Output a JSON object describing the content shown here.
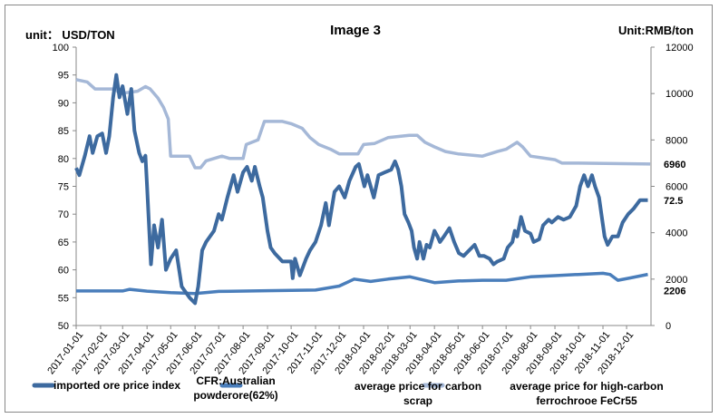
{
  "chart_data": {
    "type": "line",
    "title": "Image 3",
    "left_unit": "unit： USD/TON",
    "right_unit": "Unit:RMB/ton",
    "ylim": [
      50,
      100
    ],
    "y2lim": [
      0,
      12000
    ],
    "yticks": [
      "100",
      "95",
      "90",
      "85",
      "80",
      "75",
      "70",
      "65",
      "60",
      "55",
      "50"
    ],
    "y2ticks": [
      "12000",
      "10000",
      "8000",
      "6000",
      "4000",
      "2000",
      "0"
    ],
    "xticks": [
      "2017-01-01",
      "2017-02-01",
      "2017-03-01",
      "2017-04-01",
      "2017-05-01",
      "2017-06-01",
      "2017-07-01",
      "2017-08-01",
      "2017-09-01",
      "2017-10-01",
      "2017-11-01",
      "2017-12-01",
      "2018-01-01",
      "2018-02-01",
      "2018-03-01",
      "2018-04-01",
      "2018-05-01",
      "2018-06-01",
      "2018-07-01",
      "2018-08-01",
      "2018-09-01",
      "2018-10-01",
      "2018-11-01",
      "2018-12-01"
    ],
    "annotations": [
      "6960",
      "72.5",
      "2206"
    ],
    "legend": {
      "position": "bottom",
      "note": "CFR:Australian powderore(62%)"
    },
    "series": [
      {
        "name": "imported ore price  index",
        "axis": "left",
        "color": "#3d6a9f",
        "points": [
          [
            "2017-01-01",
            78.3
          ],
          [
            "2017-01-05",
            77
          ],
          [
            "2017-01-12",
            80.5
          ],
          [
            "2017-01-18",
            84
          ],
          [
            "2017-01-22",
            81
          ],
          [
            "2017-01-28",
            84
          ],
          [
            "2017-02-03",
            84.5
          ],
          [
            "2017-02-08",
            81
          ],
          [
            "2017-02-12",
            84
          ],
          [
            "2017-02-17",
            91
          ],
          [
            "2017-02-21",
            95
          ],
          [
            "2017-02-25",
            91
          ],
          [
            "2017-03-01",
            93
          ],
          [
            "2017-03-07",
            88
          ],
          [
            "2017-03-12",
            92.5
          ],
          [
            "2017-03-16",
            85
          ],
          [
            "2017-03-22",
            81
          ],
          [
            "2017-03-26",
            79.5
          ],
          [
            "2017-03-30",
            80.5
          ],
          [
            "2017-04-01",
            75
          ],
          [
            "2017-04-06",
            61
          ],
          [
            "2017-04-10",
            68
          ],
          [
            "2017-04-15",
            64
          ],
          [
            "2017-04-20",
            69
          ],
          [
            "2017-04-25",
            60
          ],
          [
            "2017-05-01",
            62
          ],
          [
            "2017-05-08",
            63.5
          ],
          [
            "2017-05-15",
            57
          ],
          [
            "2017-05-25",
            55
          ],
          [
            "2017-06-01",
            54
          ],
          [
            "2017-06-05",
            57
          ],
          [
            "2017-06-10",
            63.5
          ],
          [
            "2017-06-15",
            65
          ],
          [
            "2017-06-25",
            67
          ],
          [
            "2017-07-01",
            70
          ],
          [
            "2017-07-05",
            69
          ],
          [
            "2017-07-12",
            73
          ],
          [
            "2017-07-20",
            77
          ],
          [
            "2017-07-25",
            74
          ],
          [
            "2017-08-01",
            77.5
          ],
          [
            "2017-08-06",
            78.5
          ],
          [
            "2017-08-12",
            76
          ],
          [
            "2017-08-16",
            78.5
          ],
          [
            "2017-08-22",
            75
          ],
          [
            "2017-08-26",
            73
          ],
          [
            "2017-09-01",
            67
          ],
          [
            "2017-09-05",
            64
          ],
          [
            "2017-09-10",
            63
          ],
          [
            "2017-09-20",
            61.5
          ],
          [
            "2017-10-01",
            61.5
          ],
          [
            "2017-10-03",
            58.5
          ],
          [
            "2017-10-06",
            62
          ],
          [
            "2017-10-12",
            59
          ],
          [
            "2017-10-20",
            62
          ],
          [
            "2017-10-25",
            63.5
          ],
          [
            "2017-11-01",
            65
          ],
          [
            "2017-11-08",
            68
          ],
          [
            "2017-11-14",
            72
          ],
          [
            "2017-11-18",
            68
          ],
          [
            "2017-11-25",
            74
          ],
          [
            "2017-12-01",
            75
          ],
          [
            "2017-12-08",
            73
          ],
          [
            "2017-12-14",
            76
          ],
          [
            "2017-12-22",
            78.5
          ],
          [
            "2017-12-26",
            79
          ],
          [
            "2018-01-02",
            75
          ],
          [
            "2018-01-06",
            77
          ],
          [
            "2018-01-14",
            73
          ],
          [
            "2018-01-20",
            77
          ],
          [
            "2018-01-28",
            77.5
          ],
          [
            "2018-02-05",
            78
          ],
          [
            "2018-02-10",
            79.5
          ],
          [
            "2018-02-14",
            78
          ],
          [
            "2018-02-18",
            75
          ],
          [
            "2018-02-22",
            70
          ],
          [
            "2018-02-27",
            68.5
          ],
          [
            "2018-03-03",
            67
          ],
          [
            "2018-03-06",
            64
          ],
          [
            "2018-03-10",
            62
          ],
          [
            "2018-03-13",
            65
          ],
          [
            "2018-03-18",
            62
          ],
          [
            "2018-03-22",
            64.5
          ],
          [
            "2018-03-26",
            64
          ],
          [
            "2018-04-01",
            67
          ],
          [
            "2018-04-05",
            66
          ],
          [
            "2018-04-08",
            65
          ],
          [
            "2018-04-13",
            66
          ],
          [
            "2018-04-20",
            67.5
          ],
          [
            "2018-04-26",
            65
          ],
          [
            "2018-05-02",
            63
          ],
          [
            "2018-05-08",
            62.5
          ],
          [
            "2018-05-15",
            63.5
          ],
          [
            "2018-05-22",
            64.5
          ],
          [
            "2018-05-28",
            62.5
          ],
          [
            "2018-06-03",
            62.5
          ],
          [
            "2018-06-10",
            62
          ],
          [
            "2018-06-15",
            61
          ],
          [
            "2018-06-20",
            61.5
          ],
          [
            "2018-06-28",
            62
          ],
          [
            "2018-07-03",
            64
          ],
          [
            "2018-07-09",
            65
          ],
          [
            "2018-07-12",
            67
          ],
          [
            "2018-07-15",
            66
          ],
          [
            "2018-07-20",
            69.5
          ],
          [
            "2018-07-25",
            67
          ],
          [
            "2018-08-01",
            66.5
          ],
          [
            "2018-08-05",
            65
          ],
          [
            "2018-08-12",
            65.5
          ],
          [
            "2018-08-17",
            68
          ],
          [
            "2018-08-24",
            69
          ],
          [
            "2018-08-28",
            68.5
          ],
          [
            "2018-09-05",
            69.5
          ],
          [
            "2018-09-12",
            69
          ],
          [
            "2018-09-20",
            69.5
          ],
          [
            "2018-09-28",
            71.5
          ],
          [
            "2018-10-03",
            75
          ],
          [
            "2018-10-08",
            77
          ],
          [
            "2018-10-13",
            75
          ],
          [
            "2018-10-18",
            77
          ],
          [
            "2018-10-22",
            75
          ],
          [
            "2018-10-27",
            73
          ],
          [
            "2018-11-03",
            66
          ],
          [
            "2018-11-07",
            64.5
          ],
          [
            "2018-11-13",
            66
          ],
          [
            "2018-11-20",
            66
          ],
          [
            "2018-11-26",
            68.5
          ],
          [
            "2018-12-03",
            70
          ],
          [
            "2018-12-10",
            71
          ],
          [
            "2018-12-18",
            72.5
          ],
          [
            "2018-12-28",
            72.5
          ]
        ]
      },
      {
        "name": "average price for carbon scrap",
        "axis": "right",
        "color": "#4a7ebb",
        "points": [
          [
            "2017-01-01",
            1490
          ],
          [
            "2017-03-01",
            1490
          ],
          [
            "2017-03-10",
            1560
          ],
          [
            "2017-04-01",
            1480
          ],
          [
            "2017-05-01",
            1420
          ],
          [
            "2017-06-01",
            1380
          ],
          [
            "2017-07-01",
            1470
          ],
          [
            "2017-09-01",
            1500
          ],
          [
            "2017-11-01",
            1530
          ],
          [
            "2017-12-01",
            1700
          ],
          [
            "2017-12-20",
            2000
          ],
          [
            "2018-01-10",
            1900
          ],
          [
            "2018-02-01",
            2000
          ],
          [
            "2018-03-01",
            2100
          ],
          [
            "2018-04-01",
            1850
          ],
          [
            "2018-05-01",
            1920
          ],
          [
            "2018-06-01",
            1950
          ],
          [
            "2018-07-01",
            1950
          ],
          [
            "2018-08-01",
            2100
          ],
          [
            "2018-09-01",
            2150
          ],
          [
            "2018-10-01",
            2200
          ],
          [
            "2018-11-01",
            2250
          ],
          [
            "2018-11-10",
            2200
          ],
          [
            "2018-11-20",
            1950
          ],
          [
            "2018-12-05",
            2050
          ],
          [
            "2018-12-28",
            2206
          ]
        ]
      },
      {
        "name": "average price for high-carbon ferrochrooe FeCr55",
        "axis": "right",
        "color": "#a5b8d7",
        "points": [
          [
            "2017-01-01",
            10600
          ],
          [
            "2017-01-15",
            10500
          ],
          [
            "2017-01-25",
            10200
          ],
          [
            "2017-02-20",
            10200
          ],
          [
            "2017-02-25",
            10000
          ],
          [
            "2017-03-20",
            10100
          ],
          [
            "2017-03-30",
            10300
          ],
          [
            "2017-04-05",
            10200
          ],
          [
            "2017-04-15",
            9800
          ],
          [
            "2017-04-22",
            9400
          ],
          [
            "2017-04-28",
            8900
          ],
          [
            "2017-05-01",
            7300
          ],
          [
            "2017-05-25",
            7300
          ],
          [
            "2017-06-01",
            6800
          ],
          [
            "2017-06-08",
            6800
          ],
          [
            "2017-06-15",
            7100
          ],
          [
            "2017-06-25",
            7200
          ],
          [
            "2017-07-05",
            7300
          ],
          [
            "2017-07-15",
            7200
          ],
          [
            "2017-08-01",
            7200
          ],
          [
            "2017-08-05",
            7800
          ],
          [
            "2017-08-20",
            8000
          ],
          [
            "2017-08-28",
            8800
          ],
          [
            "2017-09-20",
            8800
          ],
          [
            "2017-10-01",
            8700
          ],
          [
            "2017-10-15",
            8500
          ],
          [
            "2017-10-25",
            8100
          ],
          [
            "2017-11-05",
            7800
          ],
          [
            "2017-11-20",
            7600
          ],
          [
            "2017-12-01",
            7400
          ],
          [
            "2017-12-25",
            7400
          ],
          [
            "2018-01-01",
            7800
          ],
          [
            "2018-01-15",
            7850
          ],
          [
            "2018-02-01",
            8100
          ],
          [
            "2018-02-28",
            8200
          ],
          [
            "2018-03-10",
            8200
          ],
          [
            "2018-03-20",
            7900
          ],
          [
            "2018-04-01",
            7700
          ],
          [
            "2018-04-15",
            7500
          ],
          [
            "2018-05-01",
            7400
          ],
          [
            "2018-06-01",
            7300
          ],
          [
            "2018-06-20",
            7500
          ],
          [
            "2018-07-01",
            7600
          ],
          [
            "2018-07-15",
            7900
          ],
          [
            "2018-07-22",
            7700
          ],
          [
            "2018-08-01",
            7300
          ],
          [
            "2018-09-01",
            7150
          ],
          [
            "2018-09-10",
            7000
          ],
          [
            "2018-10-01",
            7000
          ],
          [
            "2018-12-31",
            6960
          ]
        ]
      }
    ]
  }
}
